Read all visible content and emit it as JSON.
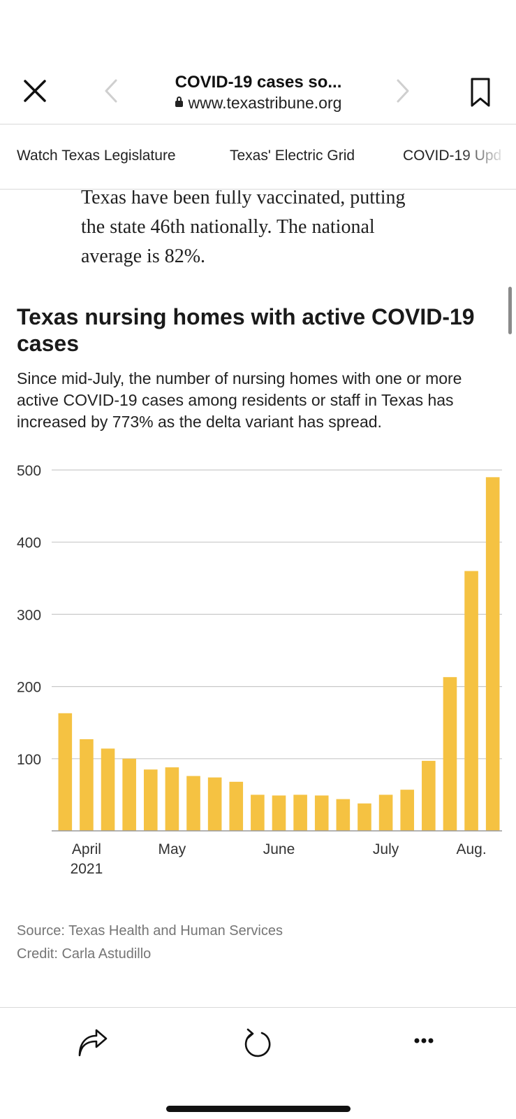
{
  "browser": {
    "title": "COVID-19 cases so...",
    "url": "www.texastribune.org"
  },
  "nav": {
    "items": [
      "Watch Texas Legislature",
      "Texas' Electric Grid",
      "COVID-19 Upd"
    ]
  },
  "article": {
    "paragraph_line1": "Texas have been fully vaccinated, putting",
    "paragraph_line2": "the state 46th nationally. The national",
    "paragraph_line3": "average is 82%."
  },
  "chart_data": {
    "type": "bar",
    "title": "Texas nursing homes with active COVID-19 cases",
    "subtitle": "Since mid-July, the number of nursing homes with one or more active COVID-19 cases among residents or staff in Texas has increased by 773% as the delta variant has spread.",
    "xlabel": "",
    "ylabel": "",
    "ylim": [
      0,
      500
    ],
    "yticks": [
      100,
      200,
      300,
      400,
      500
    ],
    "grid": true,
    "legend": "none",
    "bar_color": "#f5c242",
    "x_tick_labels": [
      {
        "label": "April",
        "label2": "2021",
        "bar_index": 1
      },
      {
        "label": "May",
        "label2": "",
        "bar_index": 5
      },
      {
        "label": "June",
        "label2": "",
        "bar_index": 10
      },
      {
        "label": "July",
        "label2": "",
        "bar_index": 15
      },
      {
        "label": "Aug.",
        "label2": "",
        "bar_index": 19
      }
    ],
    "values": [
      163,
      127,
      114,
      100,
      85,
      88,
      76,
      74,
      68,
      50,
      49,
      50,
      49,
      44,
      38,
      50,
      57,
      97,
      213,
      360,
      490
    ]
  },
  "footer": {
    "source": "Source: Texas Health and Human Services",
    "credit": "Credit: Carla Astudillo"
  },
  "colors": {
    "bar": "#f5c242",
    "grid": "#c9c9c9",
    "muted_text": "#757575"
  },
  "icons": {
    "close": "close-icon",
    "back": "chevron-left-icon",
    "forward": "chevron-right-icon",
    "bookmark": "bookmark-icon",
    "lock": "lock-icon",
    "share": "share-icon",
    "reload": "reload-icon",
    "more": "more-icon"
  }
}
